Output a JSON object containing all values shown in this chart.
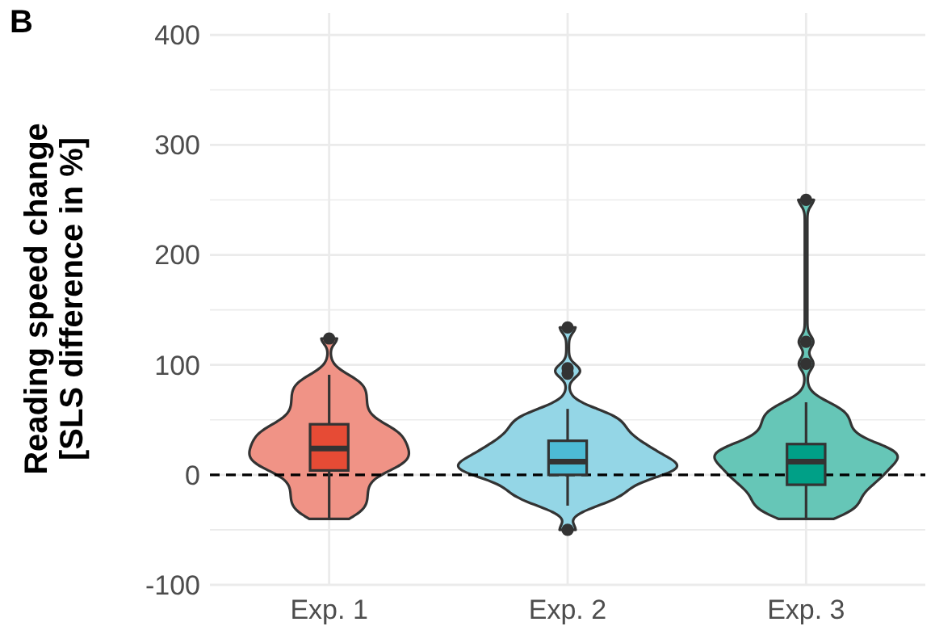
{
  "chart_data": {
    "type": "box",
    "ylabel": "Reading speed change\n[SLS difference in %]",
    "annotations": [
      "B"
    ],
    "categories": [
      "Exp. 1",
      "Exp. 2",
      "Exp. 3"
    ],
    "colors": [
      "#e64b35",
      "#4dbbd5",
      "#00a087"
    ],
    "boxes": [
      {
        "low": -40,
        "q1": 4,
        "median": 24,
        "q3": 46,
        "high": 91,
        "outliers": [
          124
        ]
      },
      {
        "low": -28,
        "q1": 0,
        "median": 12,
        "q3": 31,
        "high": 60,
        "outliers": [
          134,
          97,
          92,
          -50
        ]
      },
      {
        "low": -40,
        "q1": -9,
        "median": 12,
        "q3": 28,
        "high": 66,
        "outliers": [
          250,
          121,
          101
        ]
      }
    ],
    "ylim": [
      -100,
      420
    ],
    "yticks": [
      -100,
      {
        "value": -50,
        "label": null
      },
      0,
      {
        "value": 50,
        "label": null
      },
      100,
      {
        "value": 150,
        "label": null
      },
      200,
      {
        "value": 250,
        "label": null
      },
      300,
      {
        "value": 350,
        "label": null
      },
      400
    ],
    "grid": true,
    "ref_lines": [
      {
        "axis": "y",
        "value": 0,
        "line_style": "dashed",
        "color": "#000000"
      }
    ]
  }
}
